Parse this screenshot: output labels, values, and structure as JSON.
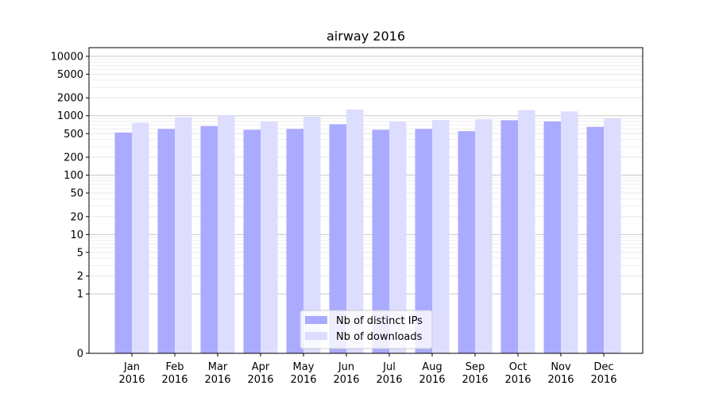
{
  "chart_data": {
    "type": "bar",
    "title": "airway 2016",
    "xlabel": "",
    "ylabel": "",
    "y_scale": "symlog",
    "ylim": [
      0,
      14000
    ],
    "yticks": [
      0,
      1,
      2,
      5,
      10,
      20,
      50,
      100,
      200,
      500,
      1000,
      2000,
      5000,
      10000
    ],
    "grid": "horizontal, major and minor",
    "legend_position": "bottom-center",
    "categories": [
      "Jan\n2016",
      "Feb\n2016",
      "Mar\n2016",
      "Apr\n2016",
      "May\n2016",
      "Jun\n2016",
      "Jul\n2016",
      "Aug\n2016",
      "Sep\n2016",
      "Oct\n2016",
      "Nov\n2016",
      "Dec\n2016"
    ],
    "series": [
      {
        "name": "Nb of distinct IPs",
        "color": "#aaaaff",
        "values": [
          520,
          600,
          670,
          580,
          600,
          720,
          580,
          600,
          550,
          840,
          800,
          650
        ]
      },
      {
        "name": "Nb of downloads",
        "color": "#ddddff",
        "values": [
          760,
          940,
          1020,
          800,
          960,
          1270,
          800,
          850,
          870,
          1240,
          1180,
          900
        ]
      }
    ]
  }
}
